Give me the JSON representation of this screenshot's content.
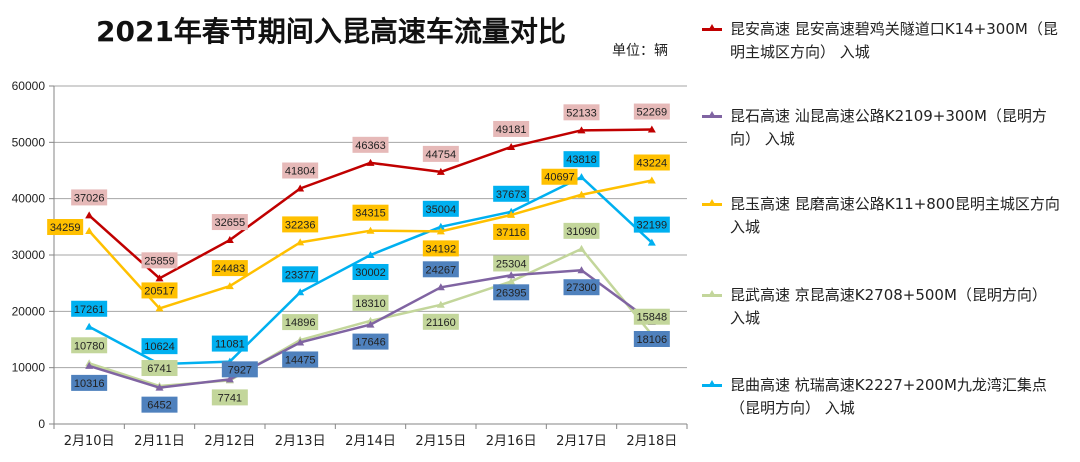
{
  "chart_data": {
    "type": "line",
    "title": "2021年春节期间入昆高速车流量对比",
    "unit_label": "单位：辆",
    "xlabel": "",
    "ylabel": "",
    "ylim": [
      0,
      60000
    ],
    "yticks": [
      0,
      10000,
      20000,
      30000,
      40000,
      50000,
      60000
    ],
    "ytick_labels": [
      "0",
      "10000",
      "20000",
      "30000",
      "40000",
      "50000",
      "60000"
    ],
    "grid": true,
    "legend_position": "right",
    "categories": [
      "2月10日",
      "2月11日",
      "2月12日",
      "2月13日",
      "2月14日",
      "2月15日",
      "2月16日",
      "2月17日",
      "2月18日"
    ],
    "series": [
      {
        "name": "昆安高速 昆安高速碧鸡关隧道口K14+300M（昆明主城区方向） 入城",
        "color": "#C00000",
        "label_bg": "#E6B9B8",
        "label_fg": "#222222",
        "values": [
          37026,
          25859,
          32655,
          41804,
          46363,
          44754,
          49181,
          52133,
          52269
        ],
        "label_pos": [
          "above",
          "above",
          "above",
          "above",
          "above",
          "above",
          "above",
          "above",
          "above"
        ]
      },
      {
        "name": "昆石高速 汕昆高速公路K2109+300M（昆明方向） 入城",
        "color": "#8064A2",
        "label_bg": "#4F81BD",
        "label_fg": "#111111",
        "values": [
          10316,
          6452,
          7927,
          14475,
          17646,
          24267,
          26395,
          27300,
          18106
        ],
        "label_pos": [
          "below",
          "below",
          "above-right",
          "below",
          "below",
          "above",
          "below",
          "below",
          "below"
        ]
      },
      {
        "name": "昆玉高速 昆磨高速公路K11+800昆明主城区方向 入城",
        "color": "#FFC000",
        "label_bg": "#FFC000",
        "label_fg": "#222222",
        "values": [
          34259,
          20517,
          24483,
          32236,
          34315,
          34192,
          37116,
          40697,
          43224
        ],
        "label_pos": [
          "left",
          "above",
          "above",
          "above",
          "above",
          "below",
          "below",
          "above-left",
          "above"
        ]
      },
      {
        "name": "昆武高速 京昆高速K2708+500M（昆明方向） 入城",
        "color": "#C3D69B",
        "label_bg": "#C3D69B",
        "label_fg": "#222222",
        "values": [
          10780,
          6741,
          7741,
          14896,
          18310,
          21160,
          25304,
          31090,
          15848
        ],
        "label_pos": [
          "above",
          "above",
          "below",
          "above",
          "above",
          "below",
          "above",
          "above",
          "above"
        ]
      },
      {
        "name": "昆曲高速 杭瑞高速K2227+200M九龙湾汇集点（昆明方向） 入城",
        "color": "#00B0F0",
        "label_bg": "#00B0F0",
        "label_fg": "#111111",
        "values": [
          17261,
          10624,
          11081,
          23377,
          30002,
          35004,
          37673,
          43818,
          32199
        ],
        "label_pos": [
          "above",
          "above",
          "above",
          "above",
          "below",
          "above",
          "above",
          "above",
          "above"
        ]
      }
    ]
  },
  "legend": {
    "items": [
      {
        "line1": "昆安高速 昆安高速碧鸡关隧道口K14+300M（昆",
        "line2": "明主城区方向） 入城"
      },
      {
        "line1": "昆石高速 汕昆高速公路K2109+300M（昆明方",
        "line2": "向） 入城"
      },
      {
        "line1": "昆玉高速 昆磨高速公路K11+800昆明主城区方向",
        "line2": "入城"
      },
      {
        "line1": "昆武高速 京昆高速K2708+500M（昆明方向）",
        "line2": "入城"
      },
      {
        "line1": "昆曲高速 杭瑞高速K2227+200M九龙湾汇集点",
        "line2": "（昆明方向） 入城"
      }
    ]
  }
}
